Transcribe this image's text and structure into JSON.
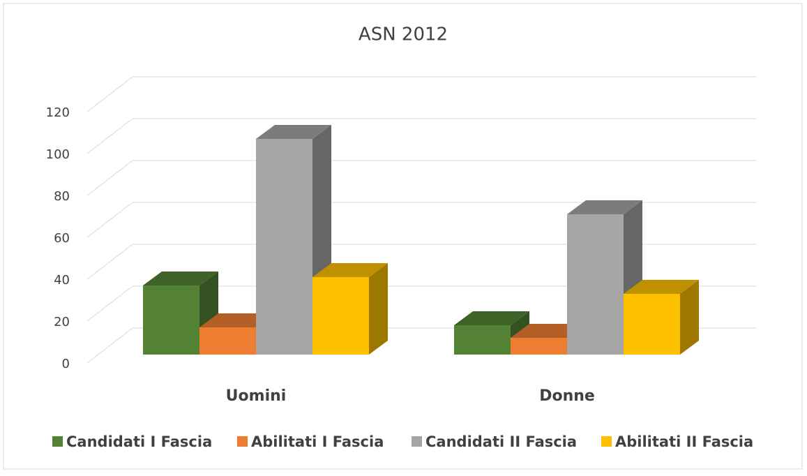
{
  "chart_data": {
    "type": "bar3d",
    "title": "ASN 2012",
    "categories": [
      "Uomini",
      "Donne"
    ],
    "series": [
      {
        "name": "Candidati I Fascia",
        "color": "#548235",
        "values": [
          33,
          14
        ]
      },
      {
        "name": "Abilitati I Fascia",
        "color": "#ed7d31",
        "values": [
          13,
          8
        ]
      },
      {
        "name": "Candidati II Fascia",
        "color": "#a5a5a5",
        "values": [
          103,
          67
        ]
      },
      {
        "name": "Abilitati II Fascia",
        "color": "#ffc000",
        "values": [
          37,
          29
        ]
      }
    ],
    "ylim": [
      0,
      120
    ],
    "yticks": [
      0,
      20,
      40,
      60,
      80,
      100,
      120
    ],
    "grid": true,
    "legend": "bottom"
  }
}
